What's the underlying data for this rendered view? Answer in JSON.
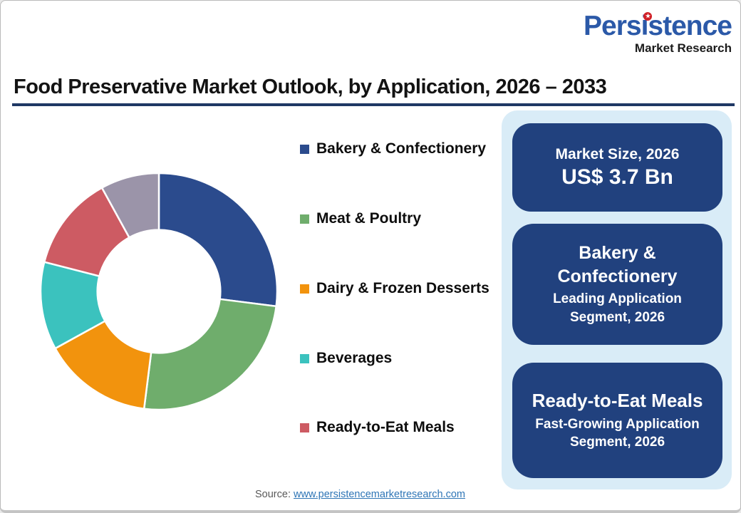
{
  "logo": {
    "name": "Persistence",
    "tagline": "Market Research",
    "name_color": "#2B59A8",
    "tagline_color": "#1b1b1b",
    "dot_color": "#D02027"
  },
  "icons": {
    "logo_star": "★"
  },
  "title": {
    "text": "Food Preservative Market Outlook, by Application, 2026 – 2033",
    "underline_color": "#1F3864"
  },
  "chart_data": {
    "type": "pie",
    "subtype": "donut",
    "title": "Food Preservative Market Outlook, by Application, 2026 – 2033",
    "inner_radius_ratio": 0.52,
    "start_angle_deg": 0,
    "direction": "clockwise",
    "legend_position": "right",
    "values_are_estimated_pct_of_arc": true,
    "segments": [
      {
        "label": "Bakery & Confectionery",
        "value": 27,
        "color": "#2B4B8D",
        "in_legend": true
      },
      {
        "label": "Meat & Poultry",
        "value": 25,
        "color": "#6FAD6C",
        "in_legend": true
      },
      {
        "label": "Dairy & Frozen Desserts",
        "value": 15,
        "color": "#F2930D",
        "in_legend": true
      },
      {
        "label": "Beverages",
        "value": 12,
        "color": "#3BC2BE",
        "in_legend": true
      },
      {
        "label": "Ready-to-Eat Meals",
        "value": 13,
        "color": "#CD5B63",
        "in_legend": true
      },
      {
        "label": "",
        "value": 8,
        "color": "#9B94A9",
        "in_legend": false
      }
    ]
  },
  "panel": {
    "background": "#D9ECF7",
    "card_background": "#21417E",
    "cards": [
      {
        "title": "Market Size, 2026",
        "value": "US$ 3.7 Bn"
      },
      {
        "title": "Bakery & Confectionery",
        "subtitle": "Leading Application Segment, 2026"
      },
      {
        "title": "Ready-to-Eat Meals",
        "subtitle": "Fast-Growing Application Segment, 2026"
      }
    ]
  },
  "footer": {
    "label": "Source:",
    "link": "www.persistencemarketresearch.com",
    "link_color": "#2E75B6"
  }
}
